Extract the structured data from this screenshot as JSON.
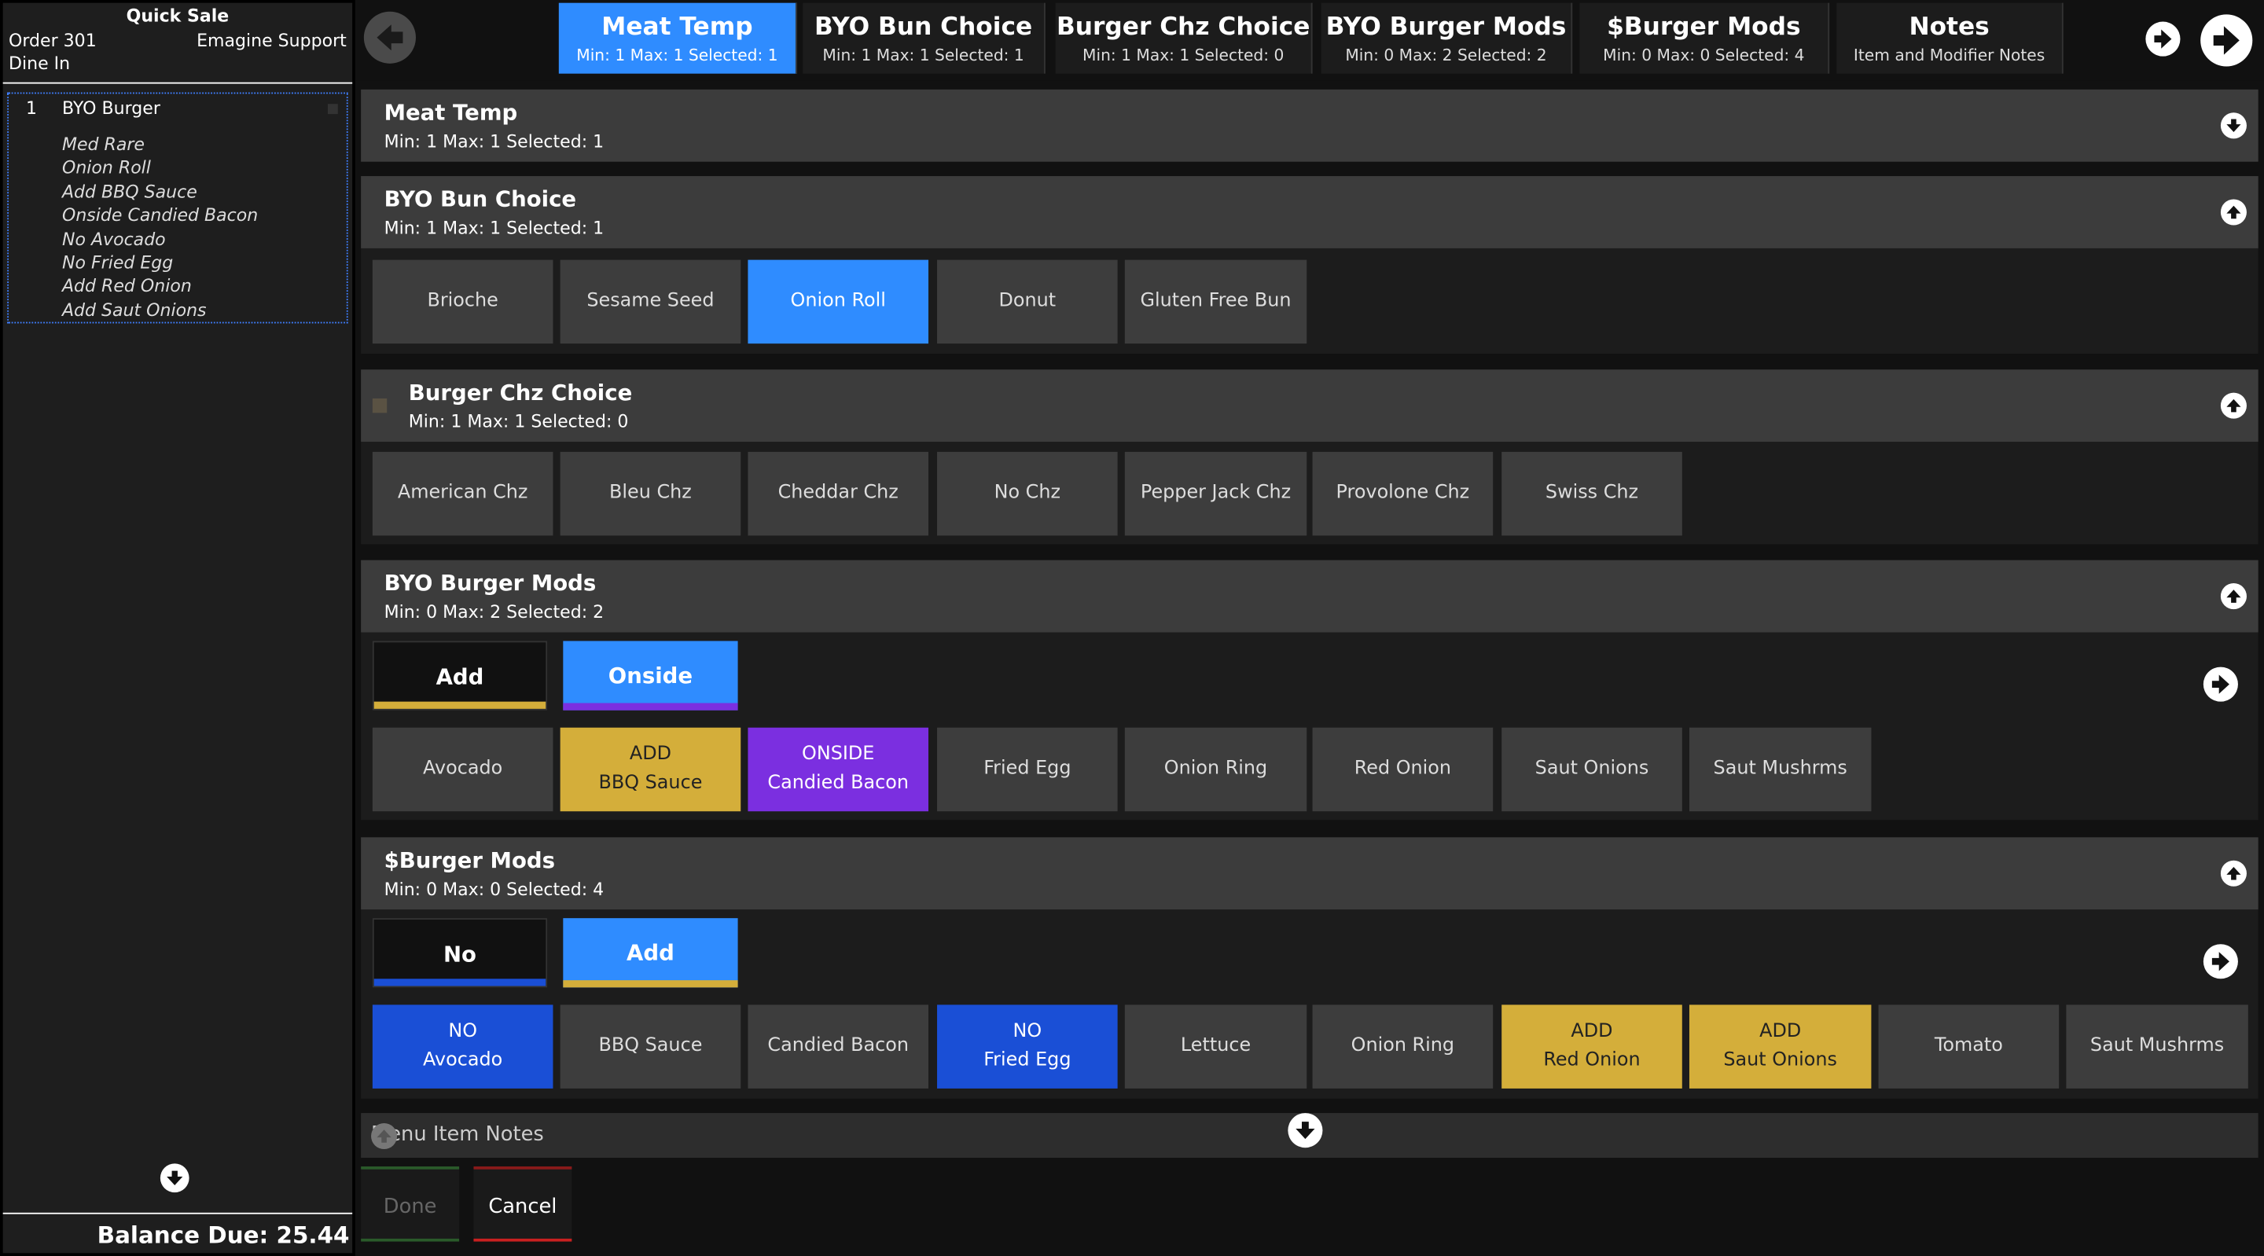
{
  "left": {
    "quick_sale": "Quick Sale",
    "order": "Order 301",
    "support": "Emagine Support",
    "dine": "Dine In",
    "item": {
      "qty": "1",
      "name": "BYO Burger"
    },
    "modifiers": [
      "Med Rare",
      "Onion Roll",
      "Add BBQ Sauce",
      "Onside Candied Bacon",
      "No Avocado",
      "No Fried Egg",
      "Add Red Onion",
      "Add Saut Onions"
    ],
    "balance": "Balance Due: 25.44"
  },
  "tabs": [
    {
      "title": "Meat Temp",
      "sub": "Min: 1  Max: 1  Selected: 1",
      "active": true
    },
    {
      "title": "BYO Bun Choice",
      "sub": "Min: 1  Max: 1  Selected: 1"
    },
    {
      "title": "Burger Chz Choice",
      "sub": "Min: 1  Max: 1  Selected: 0"
    },
    {
      "title": "BYO Burger Mods",
      "sub": "Min: 0  Max: 2  Selected: 2"
    },
    {
      "title": "$Burger Mods",
      "sub": "Min: 0  Max: 0  Selected: 4"
    },
    {
      "title": "Notes",
      "sub": "Item and Modifier Notes"
    }
  ],
  "sections": {
    "meat": {
      "title": "Meat Temp",
      "sub": "Min: 1   Max: 1   Selected: 1"
    },
    "bun": {
      "title": "BYO Bun Choice",
      "sub": "Min: 1   Max: 1   Selected: 1",
      "options": [
        "Brioche",
        "Sesame Seed",
        "Onion Roll",
        "Donut",
        "Gluten Free Bun"
      ]
    },
    "chz": {
      "title": "Burger Chz Choice",
      "sub": "Min: 1   Max: 1   Selected: 0",
      "options": [
        "American Chz",
        "Bleu Chz",
        "Cheddar Chz",
        "No Chz",
        "Pepper Jack Chz",
        "Provolone Chz",
        "Swiss Chz"
      ]
    },
    "byo": {
      "title": "BYO Burger Mods",
      "sub": "Min: 0   Max: 2   Selected: 2",
      "prefixes": [
        "Add",
        "Onside"
      ],
      "options": [
        {
          "line1": "",
          "line2": "Avocado"
        },
        {
          "line1": "ADD",
          "line2": "BBQ Sauce"
        },
        {
          "line1": "ONSIDE",
          "line2": "Candied Bacon"
        },
        {
          "line1": "",
          "line2": "Fried Egg"
        },
        {
          "line1": "",
          "line2": "Onion Ring"
        },
        {
          "line1": "",
          "line2": "Red Onion"
        },
        {
          "line1": "",
          "line2": "Saut Onions"
        },
        {
          "line1": "",
          "line2": "Saut Mushrms"
        }
      ]
    },
    "burger": {
      "title": "$Burger Mods",
      "sub": "Min: 0   Max: 0   Selected: 4",
      "prefixes": [
        "No",
        "Add"
      ],
      "options": [
        {
          "line1": "NO",
          "line2": "Avocado"
        },
        {
          "line1": "",
          "line2": "BBQ Sauce"
        },
        {
          "line1": "",
          "line2": "Candied Bacon"
        },
        {
          "line1": "NO",
          "line2": "Fried Egg"
        },
        {
          "line1": "",
          "line2": "Lettuce"
        },
        {
          "line1": "",
          "line2": "Onion Ring"
        },
        {
          "line1": "ADD",
          "line2": "Red Onion"
        },
        {
          "line1": "ADD",
          "line2": "Saut Onions"
        },
        {
          "line1": "",
          "line2": "Tomato"
        },
        {
          "line1": "",
          "line2": "Saut Mushrms"
        }
      ]
    }
  },
  "notes_label": "Menu Item Notes",
  "actions": {
    "done": "Done",
    "cancel": "Cancel"
  },
  "colors": {
    "blue": "#2f8cff",
    "yellow": "#d4ae3a",
    "purple": "#7b2fe0",
    "navy": "#1a4fd6"
  }
}
